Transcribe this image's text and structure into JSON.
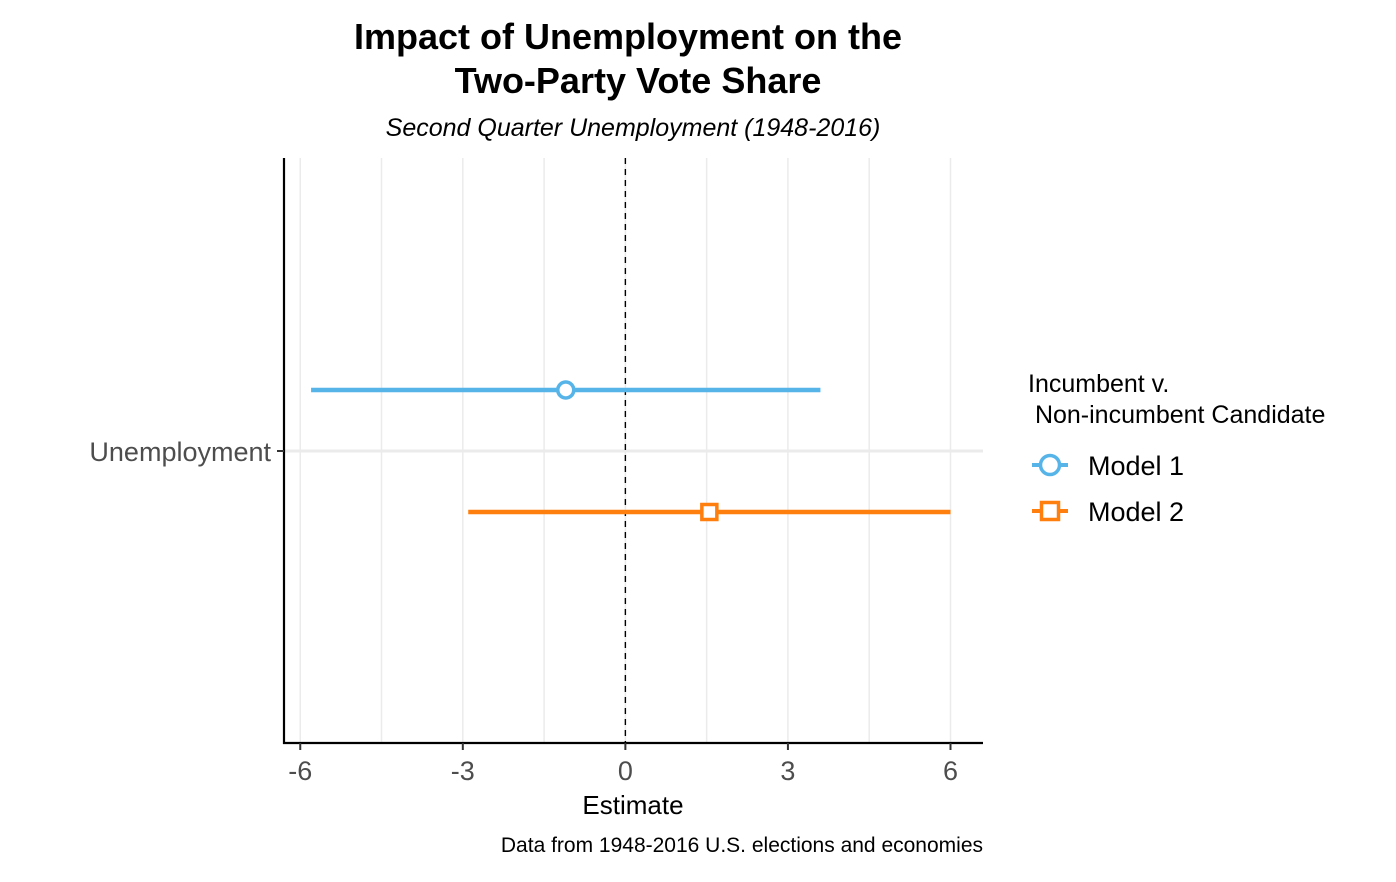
{
  "chart_data": {
    "type": "scatter",
    "title_lines": [
      "Impact of Unemployment on the",
      "Two-Party Vote Share"
    ],
    "subtitle": "Second Quarter Unemployment (1948-2016)",
    "xlabel": "Estimate",
    "ylabel": "",
    "caption": "Data from 1948-2016 U.S. elections and economies",
    "categories": [
      "Unemployment"
    ],
    "xlim": [
      -6.3,
      6.6
    ],
    "x_ticks": [
      -6,
      -3,
      0,
      3,
      6
    ],
    "x_tick_labels": [
      "-6",
      "-3",
      "0",
      "3",
      "6"
    ],
    "reference_line": 0,
    "grid": true,
    "legend": {
      "title_lines": [
        "Incumbent v.",
        " Non-incumbent Candidate"
      ],
      "placement": "right"
    },
    "series": [
      {
        "name": "Model 1",
        "term": "Unemployment",
        "estimate": -1.1,
        "ci_low": -5.8,
        "ci_high": 3.6,
        "color": "#56B4E9",
        "shape": "circle"
      },
      {
        "name": "Model 2",
        "term": "Unemployment",
        "estimate": 1.55,
        "ci_low": -2.9,
        "ci_high": 6.0,
        "color": "#FF7F0E",
        "shape": "square"
      }
    ]
  }
}
